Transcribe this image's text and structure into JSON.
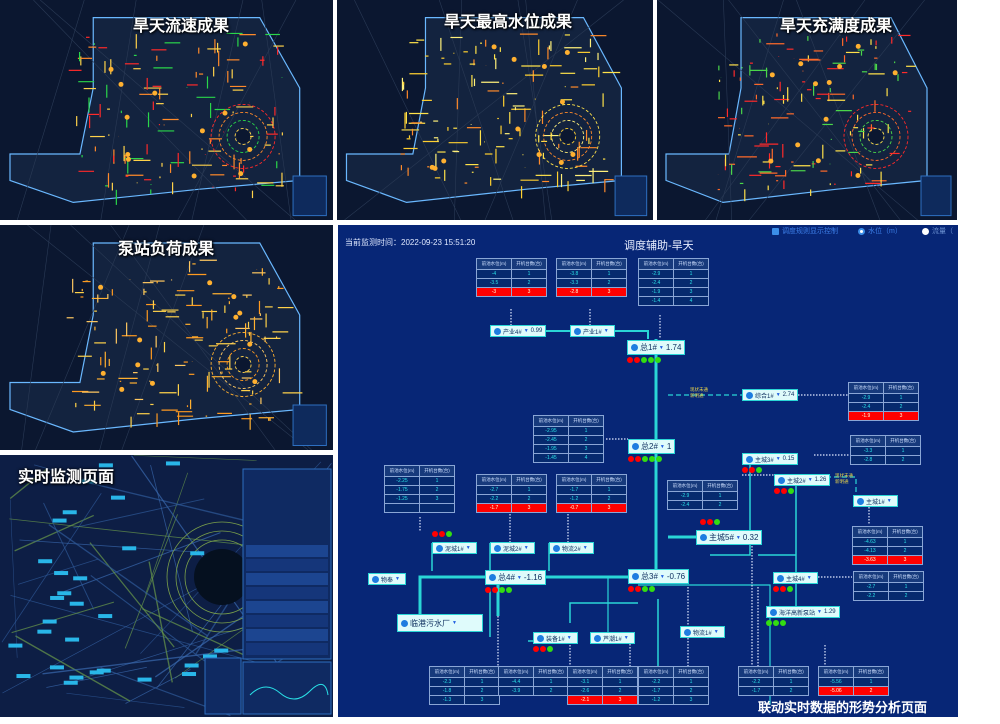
{
  "panels": [
    {
      "title": "旱天流速成果",
      "colors": [
        "#ff2a2a",
        "#ffd24a",
        "#2ad64a",
        "#ff8a2a"
      ]
    },
    {
      "title": "旱天最高水位成果",
      "colors": [
        "#ffe24a",
        "#ffd030",
        "#fff07a",
        "#ff8a2a"
      ]
    },
    {
      "title": "旱天充满度成果",
      "colors": [
        "#ff2a2a",
        "#ffe04a",
        "#4ad64a",
        "#ff6a2a"
      ]
    },
    {
      "title": "泵站负荷成果",
      "colors": [
        "#ffb030",
        "#ffd24a",
        "#ff9a20",
        "#ffc860"
      ]
    },
    {
      "title": "实时监测页面",
      "colors": [
        "#2f5a9a",
        "#6a9a4a",
        "#3a6ab0",
        "#29b6e8"
      ]
    }
  ],
  "diagram": {
    "monitor_time": "当前监测时间：2022-09-23 15:51:20",
    "title": "调度辅助-旱天",
    "controls": {
      "rule_toggle": "调度规则显示控制",
      "water_level": "水位（m）",
      "flow": "流量（"
    },
    "table_headers": [
      "前池水位(m)",
      "开机台数(台)"
    ],
    "tables": [
      {
        "rows": [
          [
            "-4",
            "1"
          ],
          [
            "-3.5",
            "2"
          ],
          [
            "-3",
            "3"
          ]
        ],
        "red_row": 2
      },
      {
        "rows": [
          [
            "-3.8",
            "1"
          ],
          [
            "-3.3",
            "2"
          ],
          [
            "-2.8",
            "3"
          ]
        ],
        "red_row": 2
      },
      {
        "rows": [
          [
            "-2.9",
            "1"
          ],
          [
            "-2.4",
            "2"
          ],
          [
            "-1.9",
            "3"
          ],
          [
            "-1.4",
            "4"
          ]
        ]
      },
      {
        "rows": [
          [
            "-2.9",
            "1"
          ],
          [
            "-2.4",
            "2"
          ],
          [
            "-1.9",
            "3"
          ]
        ],
        "red_row": 2
      },
      {
        "rows": [
          [
            "-2.95",
            "1"
          ],
          [
            "-2.45",
            "2"
          ],
          [
            "-1.95",
            "3"
          ],
          [
            "-1.45",
            "4"
          ]
        ]
      },
      {
        "rows": [
          [
            "-3.3",
            "1"
          ],
          [
            "-2.8",
            "2"
          ]
        ]
      },
      {
        "rows": [
          [
            "-2.25",
            "1"
          ],
          [
            "-1.75",
            "2"
          ],
          [
            "-1.25",
            "3"
          ],
          [
            "",
            ""
          ]
        ]
      },
      {
        "rows": [
          [
            "-2.7",
            "1"
          ],
          [
            "-2.2",
            "2"
          ],
          [
            "-1.7",
            "3"
          ]
        ],
        "red_row": 2
      },
      {
        "rows": [
          [
            "-1.7",
            "1"
          ],
          [
            "-1.2",
            "2"
          ],
          [
            "-0.7",
            "3"
          ]
        ],
        "red_row": 2
      },
      {
        "rows": [
          [
            "-2.9",
            "1"
          ],
          [
            "-2.4",
            "2"
          ]
        ]
      },
      {
        "rows": [
          [
            "-4.63",
            "1"
          ],
          [
            "-4.13",
            "2"
          ],
          [
            "-3.63",
            "3"
          ]
        ],
        "red_row": 2
      },
      {
        "rows": [
          [
            "-2.7",
            "1"
          ],
          [
            "-2.2",
            "2"
          ]
        ]
      },
      {
        "rows": [
          [
            "-2.3",
            "1"
          ],
          [
            "-1.8",
            "2"
          ],
          [
            "-1.3",
            "3"
          ]
        ]
      },
      {
        "rows": [
          [
            "-4.4",
            "1"
          ],
          [
            "-3.9",
            "2"
          ]
        ]
      },
      {
        "rows": [
          [
            "-3.1",
            "1"
          ],
          [
            "-2.6",
            "2"
          ],
          [
            "-2.1",
            "3"
          ]
        ],
        "red_row": 2
      },
      {
        "rows": [
          [
            "-2.2",
            "1"
          ],
          [
            "-1.7",
            "2"
          ],
          [
            "-1.2",
            "3"
          ]
        ]
      },
      {
        "rows": [
          [
            "-2.2",
            "1"
          ],
          [
            "-1.7",
            "2"
          ]
        ]
      },
      {
        "rows": [
          [
            "-5.56",
            "1"
          ],
          [
            "-5.06",
            "2"
          ]
        ],
        "red_row": 1
      }
    ],
    "nodes": [
      {
        "name": "产业4#",
        "value": "0.99",
        "lights": []
      },
      {
        "name": "产业1#",
        "value": "",
        "lights": []
      },
      {
        "name": "总1#",
        "value": "1.74",
        "lights": [
          "r",
          "r",
          "g",
          "g",
          "g"
        ]
      },
      {
        "name": "综合1#",
        "value": "2.74",
        "lights": []
      },
      {
        "name": "总2#",
        "value": "1",
        "lights": [
          "r",
          "r",
          "g",
          "g",
          "g"
        ]
      },
      {
        "name": "主城3#",
        "value": "0.15",
        "lights": [
          "r",
          "r",
          "g"
        ]
      },
      {
        "name": "主城2#",
        "value": "1.26",
        "lights": [
          "r",
          "r",
          "g"
        ]
      },
      {
        "name": "主城1#",
        "value": "",
        "lights": []
      },
      {
        "name": "主城5#",
        "value": "0.32",
        "lights": [
          "r",
          "r",
          "g"
        ]
      },
      {
        "name": "泥城1#",
        "value": "",
        "lights": [
          "r",
          "r",
          "g"
        ]
      },
      {
        "name": "泥城2#",
        "value": "",
        "lights": []
      },
      {
        "name": "物流2#",
        "value": "",
        "lights": []
      },
      {
        "name": "物奉",
        "value": "",
        "lights": []
      },
      {
        "name": "总4#",
        "value": "-1.16",
        "lights": [
          "r",
          "r",
          "g",
          "g"
        ]
      },
      {
        "name": "总3#",
        "value": "-0.76",
        "lights": [
          "r",
          "r",
          "g",
          "g"
        ]
      },
      {
        "name": "主城4#",
        "value": "",
        "lights": [
          "r",
          "r",
          "g"
        ]
      },
      {
        "name": "海洋高新泵站",
        "value": "1.29",
        "lights": [
          "g",
          "g",
          "g"
        ]
      },
      {
        "name": "临港污水厂",
        "value": "",
        "lights": []
      },
      {
        "name": "装备1#",
        "value": "",
        "lights": [
          "r",
          "r",
          "g"
        ]
      },
      {
        "name": "芦潮1#",
        "value": "",
        "lights": []
      },
      {
        "name": "物流1#",
        "value": "",
        "lights": []
      }
    ],
    "tags": [
      "现状未通\n新明通",
      "现状未通\n新明通"
    ],
    "colors": {
      "background": "#072676",
      "pipe": "#2ad6d6",
      "alarm": "#ff0000",
      "ok": "#33dd11"
    }
  },
  "caption": "联动实时数据的形势分析页面"
}
